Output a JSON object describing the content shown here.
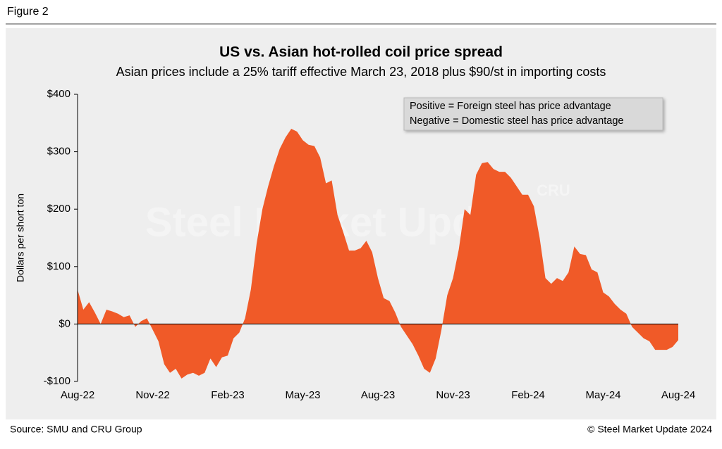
{
  "figure_label": "Figure 2",
  "chart_data": {
    "type": "area",
    "title": "US vs. Asian hot-rolled coil price spread",
    "subtitle": "Asian prices include a 25% tariff effective March 23, 2018 plus $90/st in importing costs",
    "y_label": "Dollars per short ton",
    "annotation": [
      "Positive = Foreign steel has price advantage",
      "Negative = Domestic steel has price advantage"
    ],
    "watermark": "Steel Market Update",
    "watermark_logo": "CRU",
    "color": "#f05a28",
    "categories": [
      "Aug-22",
      null,
      null,
      null,
      null,
      null,
      null,
      null,
      null,
      null,
      null,
      null,
      null,
      "Nov-22",
      null,
      null,
      null,
      null,
      null,
      null,
      null,
      null,
      null,
      null,
      null,
      null,
      "Feb-23",
      null,
      null,
      null,
      null,
      null,
      null,
      null,
      null,
      null,
      null,
      null,
      null,
      "May-23",
      null,
      null,
      null,
      null,
      null,
      null,
      null,
      null,
      null,
      null,
      null,
      null,
      "Aug-23",
      null,
      null,
      null,
      null,
      null,
      null,
      null,
      null,
      null,
      null,
      null,
      null,
      "Nov-23",
      null,
      null,
      null,
      null,
      null,
      null,
      null,
      null,
      null,
      null,
      null,
      null,
      "Feb-24",
      null,
      null,
      null,
      null,
      null,
      null,
      null,
      null,
      null,
      null,
      null,
      null,
      "May-24",
      null,
      null,
      null,
      null,
      null,
      null,
      null,
      null,
      null,
      null,
      null,
      null,
      "Aug-24"
    ],
    "values": [
      60,
      25,
      38,
      20,
      0,
      25,
      22,
      18,
      12,
      15,
      -5,
      5,
      10,
      -10,
      -30,
      -70,
      -85,
      -78,
      -95,
      -88,
      -85,
      -90,
      -85,
      -60,
      -75,
      -58,
      -55,
      -25,
      -15,
      10,
      60,
      140,
      200,
      240,
      275,
      305,
      325,
      340,
      335,
      320,
      312,
      310,
      290,
      245,
      250,
      190,
      160,
      128,
      128,
      132,
      145,
      125,
      80,
      45,
      40,
      20,
      -5,
      -20,
      -35,
      -55,
      -78,
      -85,
      -60,
      -10,
      50,
      80,
      130,
      200,
      190,
      260,
      280,
      282,
      270,
      265,
      265,
      255,
      240,
      225,
      225,
      205,
      150,
      80,
      70,
      80,
      75,
      90,
      135,
      122,
      120,
      95,
      90,
      55,
      48,
      35,
      25,
      18,
      -5,
      -15,
      -25,
      -30,
      -45,
      -45,
      -45,
      -40,
      -28
    ],
    "ylim": [
      -100,
      400
    ],
    "yticks": [
      {
        "value": -100,
        "label": "-$100"
      },
      {
        "value": 0,
        "label": "$0"
      },
      {
        "value": 100,
        "label": "$100"
      },
      {
        "value": 200,
        "label": "$200"
      },
      {
        "value": 300,
        "label": "$300"
      },
      {
        "value": 400,
        "label": "$400"
      }
    ]
  },
  "source": "Source: SMU and CRU Group",
  "copyright": "© Steel Market Update 2024"
}
